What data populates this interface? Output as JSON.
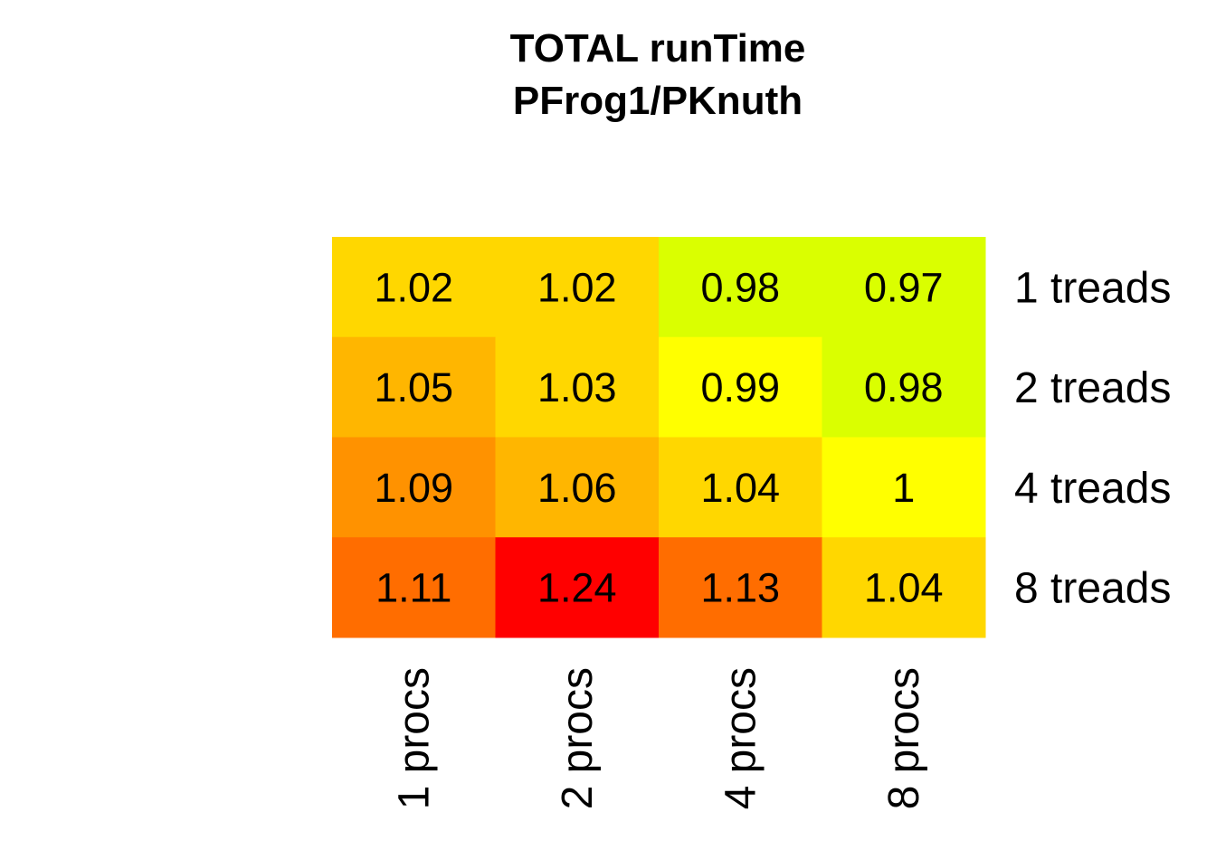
{
  "chart_data": {
    "type": "heatmap",
    "title_lines": [
      "TOTAL  runTime",
      "PFrog1/PKnuth"
    ],
    "columns": [
      "1 procs",
      "2 procs",
      "4 procs",
      "8 procs"
    ],
    "rows": [
      "1 treads",
      "2 treads",
      "4 treads",
      "8 treads"
    ],
    "values": [
      [
        1.02,
        1.02,
        0.98,
        0.97
      ],
      [
        1.05,
        1.03,
        0.99,
        0.98
      ],
      [
        1.09,
        1.06,
        1.04,
        1
      ],
      [
        1.11,
        1.24,
        1.13,
        1.04
      ]
    ],
    "labels": [
      [
        "1.02",
        "1.02",
        "0.98",
        "0.97"
      ],
      [
        "1.05",
        "1.03",
        "0.99",
        "0.98"
      ],
      [
        "1.09",
        "1.06",
        "1.04",
        "1"
      ],
      [
        "1.11",
        "1.24",
        "1.13",
        "1.04"
      ]
    ],
    "cell_colors": [
      [
        "#FFD700",
        "#FFD700",
        "#DAFF00",
        "#DAFF00"
      ],
      [
        "#FFB600",
        "#FFD700",
        "#FFFF00",
        "#DAFF00"
      ],
      [
        "#FF9200",
        "#FFB600",
        "#FFD700",
        "#FFFF00"
      ],
      [
        "#FF6D00",
        "#FF0000",
        "#FF6D00",
        "#FFD700"
      ]
    ]
  }
}
